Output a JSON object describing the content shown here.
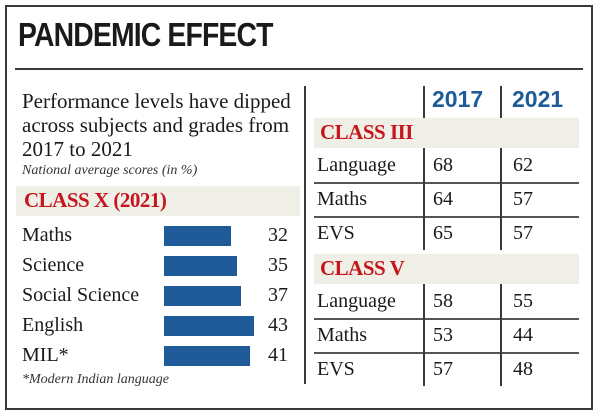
{
  "title": "PANDEMIC EFFECT",
  "intro": "Performance levels have dipped across subjects and grades from 2017 to 2021",
  "note": "National average scores (in %)",
  "footnote": "*Modern Indian language",
  "colors": {
    "bar": "#1e5b98",
    "section_heading": "#c4161c",
    "year_heading": "#1e5b98",
    "band": "#efefe8"
  },
  "chart_data": [
    {
      "type": "bar",
      "orientation": "horizontal",
      "title": "CLASS X (2021)",
      "categories": [
        "Maths",
        "Science",
        "Social Science",
        "English",
        "MIL*"
      ],
      "values": [
        32,
        35,
        37,
        43,
        41
      ],
      "grid": false
    },
    {
      "type": "table",
      "columns": [
        "2017",
        "2021"
      ],
      "sections": [
        {
          "title": "CLASS III",
          "rows": [
            {
              "label": "Language",
              "values": [
                68,
                62
              ]
            },
            {
              "label": "Maths",
              "values": [
                64,
                57
              ]
            },
            {
              "label": "EVS",
              "values": [
                65,
                57
              ]
            }
          ]
        },
        {
          "title": "CLASS V",
          "rows": [
            {
              "label": "Language",
              "values": [
                58,
                55
              ]
            },
            {
              "label": "Maths",
              "values": [
                53,
                44
              ]
            },
            {
              "label": "EVS",
              "values": [
                57,
                48
              ]
            }
          ]
        }
      ]
    }
  ]
}
